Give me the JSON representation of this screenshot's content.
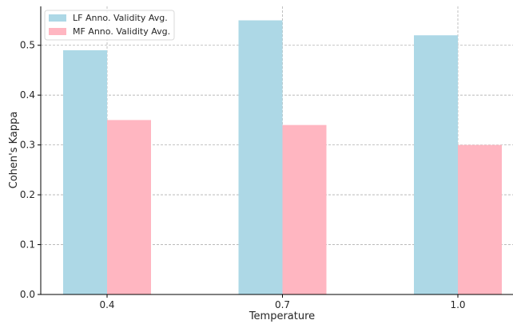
{
  "chart_data": {
    "type": "bar",
    "categories": [
      "0.4",
      "0.7",
      "1.0"
    ],
    "series": [
      {
        "name": "LF Anno. Validity Avg.",
        "values": [
          0.49,
          0.55,
          0.52
        ],
        "color": "#add8e6"
      },
      {
        "name": "MF Anno. Validity Avg.",
        "values": [
          0.35,
          0.34,
          0.3
        ],
        "color": "#ffb6c1"
      }
    ],
    "xlabel": "Temperature",
    "ylabel": "Cohen's Kappa",
    "ylim": [
      0,
      0.578
    ],
    "yticks": [
      "0.0",
      "0.1",
      "0.2",
      "0.3",
      "0.4",
      "0.5"
    ],
    "grid": true,
    "legend_position": "top-left"
  }
}
